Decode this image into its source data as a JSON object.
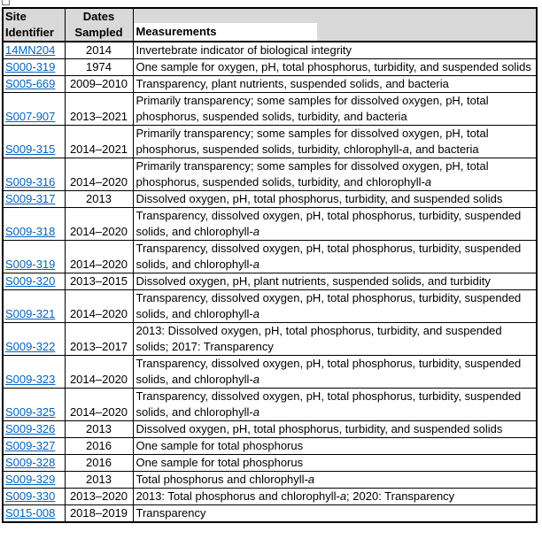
{
  "icons": {
    "corner_artifact": "partial-selection-square"
  },
  "colors": {
    "header_bg": "#d9d9d9",
    "link": "#0563c1",
    "border": "#000000"
  },
  "table": {
    "header": {
      "site_line1": "Site",
      "site_line2": "Identifier",
      "dates_line1": "Dates",
      "dates_line2": "Sampled",
      "measurements": "Measurements"
    },
    "rows": [
      {
        "site": "14MN204",
        "dates": "2014",
        "measurements": "Invertebrate indicator of biological integrity"
      },
      {
        "site": "S000-319",
        "dates": "1974",
        "measurements": "One sample for oxygen, pH, total phosphorus, turbidity, and suspended solids"
      },
      {
        "site": "S005-669",
        "dates": "2009–2010",
        "measurements": "Transparency, plant nutrients, suspended solids, and bacteria"
      },
      {
        "site": "S007-907",
        "dates": "2013–2021",
        "measurements": "Primarily transparency; some samples for dissolved oxygen, pH, total phosphorus, suspended solids, turbidity, and bacteria"
      },
      {
        "site": "S009-315",
        "dates": "2014–2021",
        "measurements": "Primarily transparency; some samples for dissolved oxygen, pH, total phosphorus, suspended solids, turbidity, chlorophyll-a, and bacteria"
      },
      {
        "site": "S009-316",
        "dates": "2014–2020",
        "measurements": "Primarily transparency; some samples for dissolved oxygen, pH, total phosphorus, suspended solids, turbidity, and chlorophyll-a"
      },
      {
        "site": "S009-317",
        "dates": "2013",
        "measurements": "Dissolved oxygen, pH, total phosphorus, turbidity, and suspended solids"
      },
      {
        "site": "S009-318",
        "dates": "2014–2020",
        "measurements": "Transparency, dissolved oxygen, pH, total phosphorus, turbidity, suspended solids, and chlorophyll-a"
      },
      {
        "site": "S009-319",
        "dates": "2014–2020",
        "measurements": "Transparency, dissolved oxygen, pH, total phosphorus, turbidity, suspended solids, and chlorophyll-a"
      },
      {
        "site": "S009-320",
        "dates": "2013–2015",
        "measurements": "Dissolved oxygen, pH, plant nutrients, suspended solids, and turbidity"
      },
      {
        "site": "S009-321",
        "dates": "2014–2020",
        "measurements": "Transparency, dissolved oxygen, pH, total phosphorus, turbidity, suspended solids, and chlorophyll-a"
      },
      {
        "site": "S009-322",
        "dates": "2013–2017",
        "measurements": "2013: Dissolved oxygen, pH, total phosphorus, turbidity, and suspended solids; 2017: Transparency"
      },
      {
        "site": "S009-323",
        "dates": "2014–2020",
        "measurements": "Transparency, dissolved oxygen, pH, total phosphorus, turbidity, suspended solids, and chlorophyll-a"
      },
      {
        "site": "S009-325",
        "dates": "2014–2020",
        "measurements": "Transparency, dissolved oxygen, pH, total phosphorus, turbidity, suspended solids, and chlorophyll-a"
      },
      {
        "site": "S009-326",
        "dates": "2013",
        "measurements": "Dissolved oxygen, pH, total phosphorus, turbidity, and suspended solids"
      },
      {
        "site": "S009-327",
        "dates": "2016",
        "measurements": "One sample for total phosphorus"
      },
      {
        "site": "S009-328",
        "dates": "2016",
        "measurements": "One sample for total phosphorus"
      },
      {
        "site": "S009-329",
        "dates": "2013",
        "measurements": "Total phosphorus and chlorophyll-a"
      },
      {
        "site": "S009-330",
        "dates": "2013–2020",
        "measurements": "2013: Total phosphorus and chlorophyll-a; 2020: Transparency"
      },
      {
        "site": "S015-008",
        "dates": "2018–2019",
        "measurements": "Transparency"
      }
    ]
  }
}
